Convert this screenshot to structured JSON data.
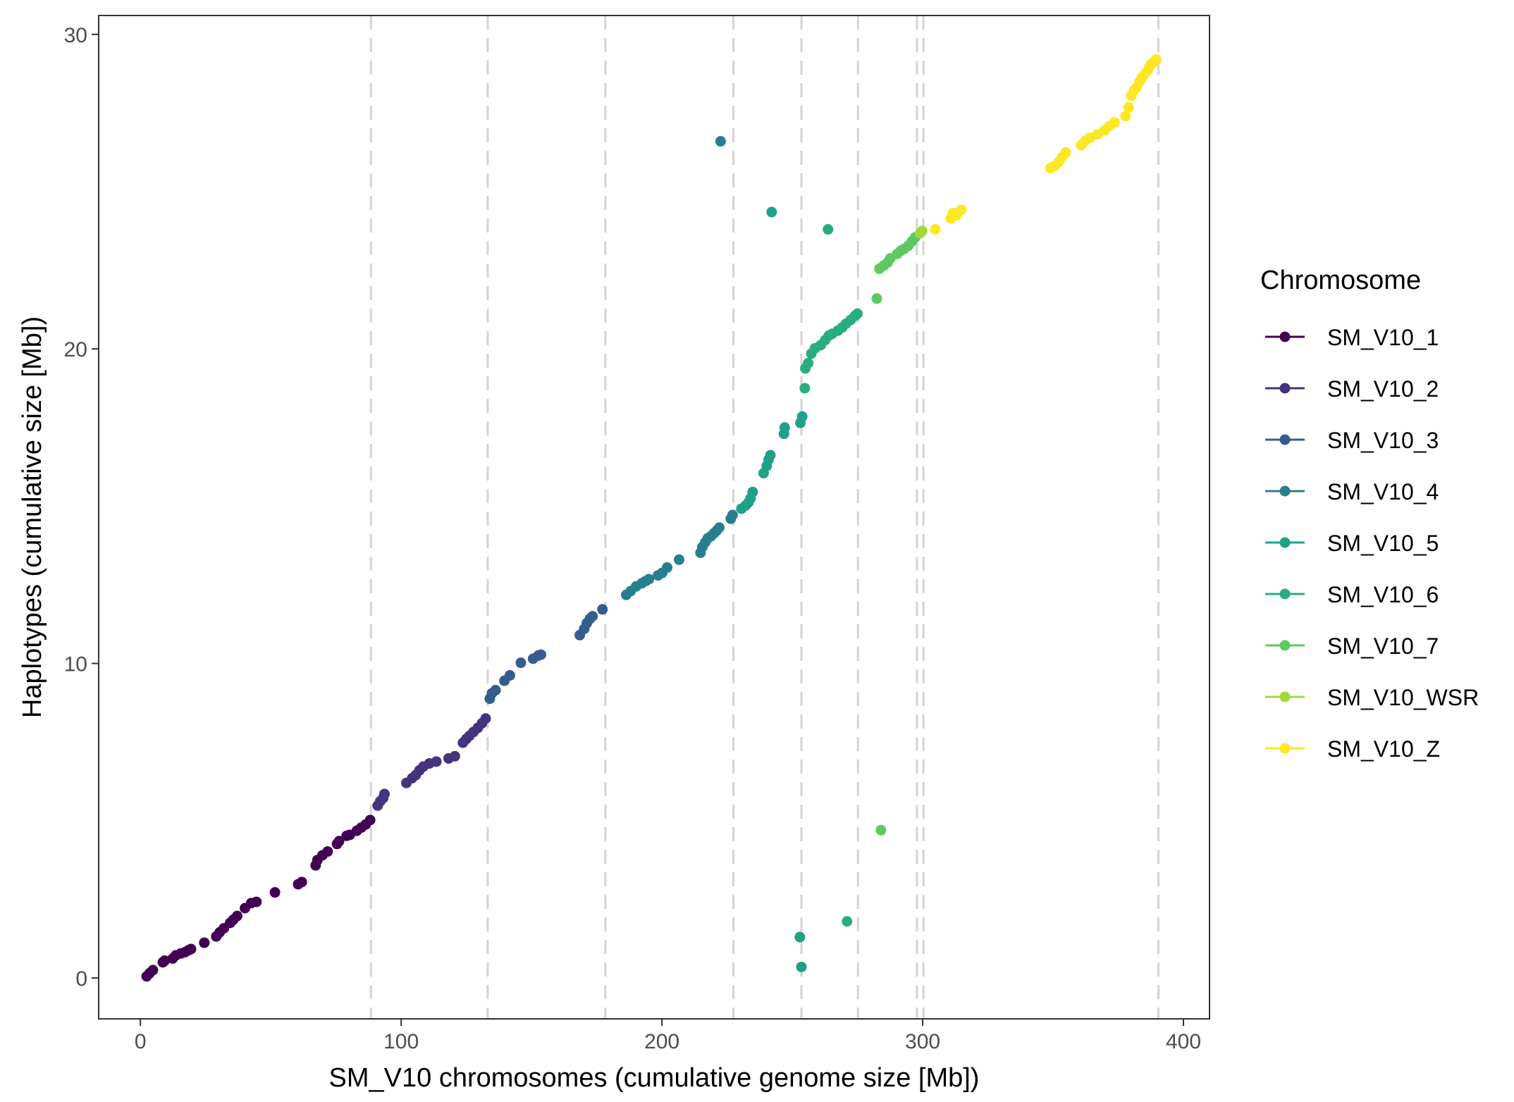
{
  "chart_data": {
    "type": "scatter",
    "xlabel": "SM_V10 chromosomes (cumulative genome size [Mb])",
    "ylabel": "Haplotypes (cumulative size [Mb])",
    "xlim": [
      -16,
      410
    ],
    "ylim": [
      -1.3,
      30.6
    ],
    "x_ticks": [
      0,
      100,
      200,
      300,
      400
    ],
    "y_ticks": [
      0,
      10,
      20,
      30
    ],
    "x_tick_labels": [
      "0",
      "100",
      "200",
      "300",
      "400"
    ],
    "y_tick_labels": [
      "0",
      "10",
      "20",
      "30"
    ],
    "grid": false,
    "chromosome_boundaries": [
      88.4,
      133.2,
      178.3,
      227.4,
      253.5,
      275.2,
      297.8,
      300.3,
      390.4
    ],
    "legend": {
      "title": "Chromosome",
      "position": "right"
    },
    "series": [
      {
        "name": "SM_V10_1",
        "color": "#440154",
        "points": [
          [
            2.4,
            0.05
          ],
          [
            3.5,
            0.15
          ],
          [
            4.8,
            0.25
          ],
          [
            8.6,
            0.5
          ],
          [
            9.3,
            0.55
          ],
          [
            12.4,
            0.62
          ],
          [
            13.6,
            0.72
          ],
          [
            15.5,
            0.78
          ],
          [
            17.1,
            0.82
          ],
          [
            18.4,
            0.88
          ],
          [
            19.4,
            0.92
          ],
          [
            24.5,
            1.12
          ],
          [
            29.1,
            1.32
          ],
          [
            30.4,
            1.45
          ],
          [
            32.0,
            1.58
          ],
          [
            34.4,
            1.75
          ],
          [
            35.6,
            1.85
          ],
          [
            37.1,
            1.97
          ],
          [
            40.1,
            2.22
          ],
          [
            42.5,
            2.38
          ],
          [
            44.5,
            2.42
          ],
          [
            51.6,
            2.72
          ],
          [
            60.5,
            2.98
          ],
          [
            61.9,
            3.05
          ],
          [
            67.2,
            3.58
          ],
          [
            67.9,
            3.75
          ],
          [
            69.8,
            3.9
          ],
          [
            71.8,
            4.02
          ],
          [
            75.4,
            4.26
          ],
          [
            76.2,
            4.35
          ],
          [
            79.1,
            4.52
          ],
          [
            80.3,
            4.55
          ],
          [
            83.0,
            4.68
          ],
          [
            84.7,
            4.78
          ],
          [
            86.4,
            4.88
          ],
          [
            88.1,
            5.02
          ]
        ]
      },
      {
        "name": "SM_V10_2",
        "color": "#46337e",
        "points": [
          [
            91.0,
            5.48
          ],
          [
            92.0,
            5.62
          ],
          [
            93.1,
            5.72
          ],
          [
            93.6,
            5.85
          ],
          [
            102.0,
            6.2
          ],
          [
            104.2,
            6.35
          ],
          [
            105.6,
            6.45
          ],
          [
            107.0,
            6.6
          ],
          [
            108.5,
            6.72
          ],
          [
            110.8,
            6.82
          ],
          [
            113.5,
            6.88
          ],
          [
            118.2,
            6.98
          ],
          [
            120.6,
            7.05
          ],
          [
            123.7,
            7.48
          ],
          [
            125.0,
            7.6
          ],
          [
            126.2,
            7.7
          ],
          [
            127.7,
            7.82
          ],
          [
            129.4,
            7.95
          ],
          [
            131.0,
            8.1
          ],
          [
            132.4,
            8.25
          ]
        ]
      },
      {
        "name": "SM_V10_3",
        "color": "#365c8d",
        "points": [
          [
            134.0,
            8.88
          ],
          [
            134.8,
            9.05
          ],
          [
            136.2,
            9.15
          ],
          [
            139.6,
            9.45
          ],
          [
            141.7,
            9.62
          ],
          [
            145.9,
            10.02
          ],
          [
            150.6,
            10.15
          ],
          [
            152.6,
            10.25
          ],
          [
            153.6,
            10.28
          ],
          [
            168.5,
            10.9
          ],
          [
            170.2,
            11.1
          ],
          [
            171.2,
            11.28
          ],
          [
            172.4,
            11.42
          ],
          [
            173.4,
            11.5
          ],
          [
            177.2,
            11.72
          ]
        ]
      },
      {
        "name": "SM_V10_4",
        "color": "#277f8e",
        "points": [
          [
            186.3,
            12.18
          ],
          [
            188.0,
            12.3
          ],
          [
            190.1,
            12.45
          ],
          [
            192.3,
            12.55
          ],
          [
            193.8,
            12.62
          ],
          [
            195.0,
            12.68
          ],
          [
            198.5,
            12.8
          ],
          [
            200.1,
            12.88
          ],
          [
            202.0,
            13.05
          ],
          [
            206.6,
            13.3
          ],
          [
            214.8,
            13.52
          ],
          [
            215.5,
            13.7
          ],
          [
            216.6,
            13.85
          ],
          [
            217.6,
            13.98
          ],
          [
            218.9,
            14.05
          ],
          [
            220.1,
            14.15
          ],
          [
            221.0,
            14.22
          ],
          [
            222.0,
            14.32
          ],
          [
            222.5,
            26.6
          ],
          [
            226.4,
            14.6
          ],
          [
            227.1,
            14.72
          ]
        ]
      },
      {
        "name": "SM_V10_5",
        "color": "#1fa188",
        "points": [
          [
            230.5,
            14.92
          ],
          [
            232.1,
            15.02
          ],
          [
            233.2,
            15.12
          ],
          [
            234.0,
            15.25
          ],
          [
            234.8,
            15.45
          ],
          [
            239.0,
            16.05
          ],
          [
            240.2,
            16.28
          ],
          [
            240.9,
            16.48
          ],
          [
            241.6,
            16.62
          ],
          [
            242.1,
            24.35
          ],
          [
            246.8,
            17.3
          ],
          [
            247.1,
            17.5
          ],
          [
            252.9,
            1.3
          ],
          [
            253.1,
            17.65
          ],
          [
            253.5,
            0.35
          ],
          [
            253.8,
            17.85
          ]
        ]
      },
      {
        "name": "SM_V10_6",
        "color": "#27ad81",
        "points": [
          [
            254.8,
            18.75
          ],
          [
            255.0,
            19.38
          ],
          [
            256.1,
            19.55
          ],
          [
            257.3,
            19.85
          ],
          [
            258.7,
            20.02
          ],
          [
            260.9,
            20.12
          ],
          [
            262.6,
            20.28
          ],
          [
            263.7,
            23.8
          ],
          [
            264.0,
            20.42
          ],
          [
            265.3,
            20.48
          ],
          [
            267.5,
            20.58
          ],
          [
            269.1,
            20.68
          ],
          [
            270.6,
            20.8
          ],
          [
            271.0,
            1.8
          ],
          [
            272.4,
            20.92
          ],
          [
            274.0,
            21.05
          ],
          [
            275.0,
            21.12
          ]
        ]
      },
      {
        "name": "SM_V10_7",
        "color": "#5ec962",
        "points": [
          [
            282.4,
            21.6
          ],
          [
            283.4,
            22.55
          ],
          [
            284.0,
            4.7
          ],
          [
            285.1,
            22.65
          ],
          [
            286.6,
            22.75
          ],
          [
            287.6,
            22.88
          ],
          [
            290.2,
            23.02
          ],
          [
            291.6,
            23.12
          ],
          [
            292.9,
            23.18
          ],
          [
            294.5,
            23.28
          ],
          [
            295.9,
            23.42
          ],
          [
            297.2,
            23.55
          ]
        ]
      },
      {
        "name": "SM_V10_WSR",
        "color": "#a0da39",
        "points": [
          [
            299.0,
            23.68
          ],
          [
            299.8,
            23.75
          ]
        ]
      },
      {
        "name": "SM_V10_Z",
        "color": "#fde725",
        "points": [
          [
            304.8,
            23.8
          ],
          [
            310.8,
            24.15
          ],
          [
            311.6,
            24.32
          ],
          [
            313.0,
            24.25
          ],
          [
            314.8,
            24.42
          ],
          [
            349.0,
            25.75
          ],
          [
            350.6,
            25.82
          ],
          [
            352.2,
            25.95
          ],
          [
            353.5,
            26.1
          ],
          [
            354.9,
            26.25
          ],
          [
            360.8,
            26.48
          ],
          [
            362.4,
            26.62
          ],
          [
            364.2,
            26.72
          ],
          [
            367.0,
            26.82
          ],
          [
            369.8,
            26.95
          ],
          [
            371.5,
            27.08
          ],
          [
            373.6,
            27.2
          ],
          [
            377.8,
            27.4
          ],
          [
            379.0,
            27.68
          ],
          [
            380.0,
            28.05
          ],
          [
            381.0,
            28.22
          ],
          [
            382.0,
            28.32
          ],
          [
            383.2,
            28.5
          ],
          [
            384.0,
            28.62
          ],
          [
            385.0,
            28.72
          ],
          [
            386.2,
            28.85
          ],
          [
            386.8,
            28.95
          ],
          [
            387.6,
            29.05
          ],
          [
            388.6,
            29.12
          ],
          [
            389.6,
            29.2
          ]
        ]
      }
    ]
  }
}
